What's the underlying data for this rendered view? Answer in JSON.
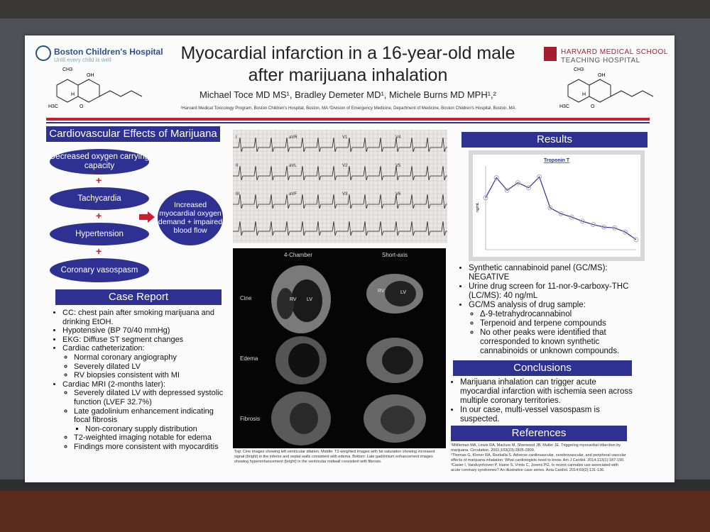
{
  "header": {
    "logo_left": {
      "name": "Boston Children's Hospital",
      "tagline": "Until every child is well"
    },
    "logo_right": {
      "line1": "HARVARD MEDICAL SCHOOL",
      "line2": "TEACHING HOSPITAL"
    },
    "title": [
      "Myocardial infarction in a 16-year-old male",
      "after marijuana inhalation"
    ],
    "authors": "Michael Toce MD MS¹, Bradley Demeter MD¹, Michele Burns MD MPH¹,²",
    "affiliations": "¹Harvard Medical Toxicology Program, Boston Children's Hospital, Boston, MA  ²Division of Emergency Medicine, Department of Medicine, Boston Children's Hospital, Boston, MA"
  },
  "molecule": {
    "ch3": "CH3",
    "oh": "OH",
    "h": "H",
    "o": "O",
    "h3c": "H3C"
  },
  "cardiovascular": {
    "title": "Cardiovascular Effects of Marijuana",
    "effects": [
      "Decreased oxygen carrying capacity",
      "Tachycardia",
      "Hypertension",
      "Coronary vasospasm"
    ],
    "outcome": "Increased myocardial oxygen demand + impaired blood flow"
  },
  "case_report": {
    "title": "Case Report",
    "items": [
      {
        "text": "CC: chest pain after smoking marijuana and drinking EtOH."
      },
      {
        "text": "Hypotensive (BP 70/40 mmHg)"
      },
      {
        "text": "EKG: Diffuse ST segment changes"
      },
      {
        "text": "Cardiac catheterization:",
        "subitems": [
          {
            "text": "Normal coronary angiography"
          },
          {
            "text": "Severely dilated LV"
          },
          {
            "text": "RV biopsies consistent with MI"
          }
        ]
      },
      {
        "text": "Cardiac MRI (2-months later):",
        "subitems": [
          {
            "text": "Severely dilated LV with depressed systolic function (LVEF 32.7%)"
          },
          {
            "text": "Late gadolinium enhancement indicating focal fibrosis",
            "subitems": [
              {
                "text": "Non-coronary supply distribution"
              }
            ]
          },
          {
            "text": "T2-weighted imaging notable for edema"
          },
          {
            "text": "Findings more consistent with myocarditis"
          }
        ]
      }
    ]
  },
  "imaging": {
    "ecg_leads": [
      "I",
      "aVR",
      "V1",
      "V4",
      "II",
      "aVL",
      "V2",
      "V5",
      "III",
      "aVF",
      "V3",
      "V6"
    ],
    "mri_columns": [
      "4-Chamber",
      "Short-axis"
    ],
    "mri_rows": [
      "Cine",
      "Edema",
      "Fibrosis"
    ],
    "rv": "RV",
    "lv": "LV",
    "caption": "Top: Cine images showing left ventricular dilation. Middle: T2-weighted images with fat saturation showing increased signal (bright) in the inferior and septal walls consistent with edema. Bottom: Late gadolinium enhancement images showing hyperenhancement (bright) in the ventricular midwall consistent with fibrosis."
  },
  "chart_data": {
    "type": "line",
    "title": "Troponin T",
    "y_label": "ng/mL",
    "color": "#2e3192",
    "values": [
      6.2,
      8.6,
      7.1,
      8.0,
      7.4,
      8.7,
      5.0,
      4.3,
      3.9,
      3.4,
      3.0,
      2.7,
      2.6,
      2.1,
      1.2
    ],
    "ylim": [
      0,
      10
    ]
  },
  "results": {
    "title": "Results",
    "items": [
      {
        "text": "Synthetic cannabinoid panel (GC/MS): NEGATIVE"
      },
      {
        "text": "Urine drug screen for 11-nor-9-carboxy-THC (LC/MS): 40 ng/mL"
      },
      {
        "text": "GC/MS analysis of drug sample:",
        "subitems": [
          {
            "text": "Δ-9-tetrahydrocannabinol"
          },
          {
            "text": "Terpenoid and terpene compounds"
          },
          {
            "text": "No other peaks were identified that corresponded to known synthetic cannabinoids or unknown compounds."
          }
        ]
      }
    ]
  },
  "conclusions": {
    "title": "Conclusions",
    "items": [
      {
        "text": "Marijuana inhalation can trigger acute myocardial infarction with ischemia seen across multiple coronary territories."
      },
      {
        "text": "In our case, multi-vessel vasospasm is suspected."
      }
    ]
  },
  "references": {
    "title": "References",
    "items": [
      "¹Mittleman MA, Lewis RA, Maclure M, Sherwood JB, Muller JE. Triggering myocardial infarction by marijuana. Circulation. 2001;103(23):2805-2809.",
      "²Thomas G, Kloner RA, Rezkalla S. Adverse cardiovascular, cerebrovascular, and peripheral vascular effects of marijuana inhalation: What cardiologists need to know. Am J Cardiol. 2014;113(1):187-190.",
      "³Casier I, Vanduynhoven P, Haine S, Vrints C, Jorens PG. Is recent cannabis use associated with acute coronary syndromes? An illustrative case series. Acta Cardiol. 2014;69(2):131-136."
    ]
  }
}
